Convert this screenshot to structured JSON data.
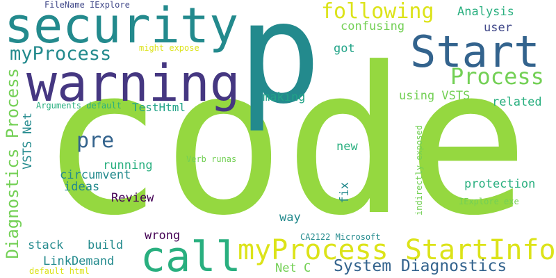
{
  "palette": {
    "background": "#ffffff",
    "lime": "#95d840",
    "teal": "#238a8d",
    "purple": "#453781",
    "green": "#29af7f",
    "yellow": "#dce319",
    "navy": "#33638d",
    "dark-purple": "#440154",
    "light-green": "#73d055",
    "sea-green": "#20a387",
    "blue": "#3f4788"
  },
  "words": [
    "code",
    "p",
    "security",
    "warning",
    "call",
    "Start",
    "myProcess StartInfo",
    "following",
    "Process",
    "myProcess",
    "System Diagnostics",
    "Diagnostics Process",
    "pre",
    "Analysis",
    "confusing",
    "user",
    "got",
    "making",
    "using VSTS",
    "related",
    "TestHtml",
    "VSTS Net",
    "new",
    "running",
    "circumvent",
    "ideas",
    "Review",
    "wrong",
    "protection",
    "fix",
    "way",
    "stack",
    "build",
    "LinkDemand",
    "Net C",
    "CA2122 Microsoft",
    "IExplore exe",
    "indirectly exposed",
    "Verb runas",
    "Arguments default",
    "might expose",
    "FileName IExplore",
    "default html"
  ]
}
